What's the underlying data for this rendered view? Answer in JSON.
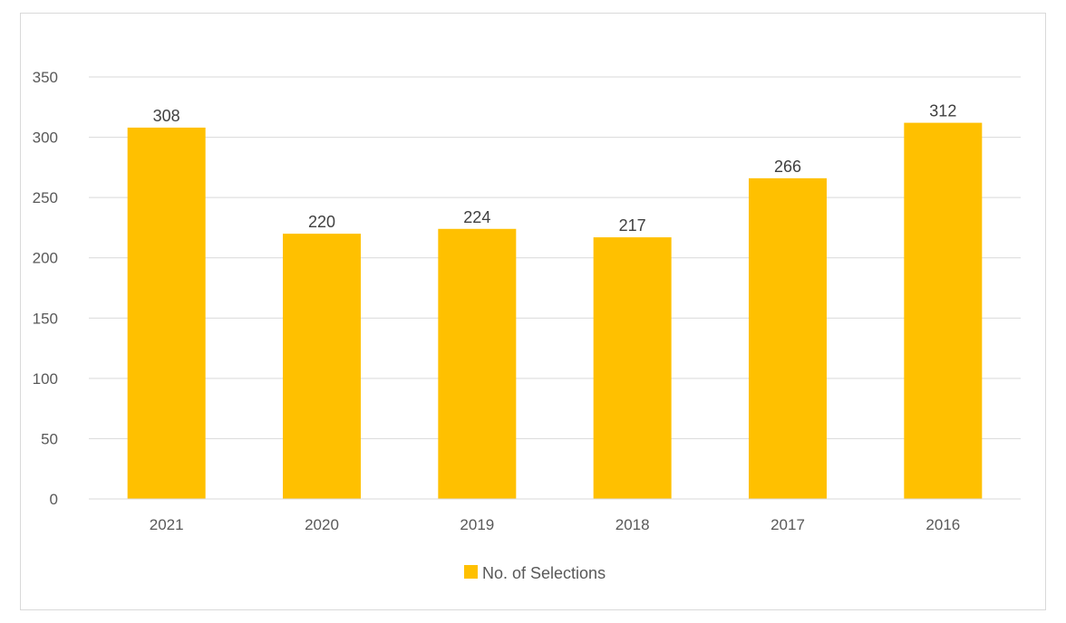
{
  "chart_data": {
    "type": "bar",
    "title": "",
    "xlabel": "",
    "ylabel": "",
    "categories": [
      "2021",
      "2020",
      "2019",
      "2018",
      "2017",
      "2016"
    ],
    "series": [
      {
        "name": "No. of Selections",
        "values": [
          308,
          220,
          224,
          217,
          266,
          312
        ],
        "color": "#FFC000"
      }
    ],
    "ylim": [
      0,
      350
    ],
    "yticks": [
      0,
      50,
      100,
      150,
      200,
      250,
      300,
      350
    ],
    "grid": true,
    "legend_position": "bottom",
    "colors": {
      "gridline": "#d9d9d9",
      "axis": "#d9d9d9"
    }
  }
}
